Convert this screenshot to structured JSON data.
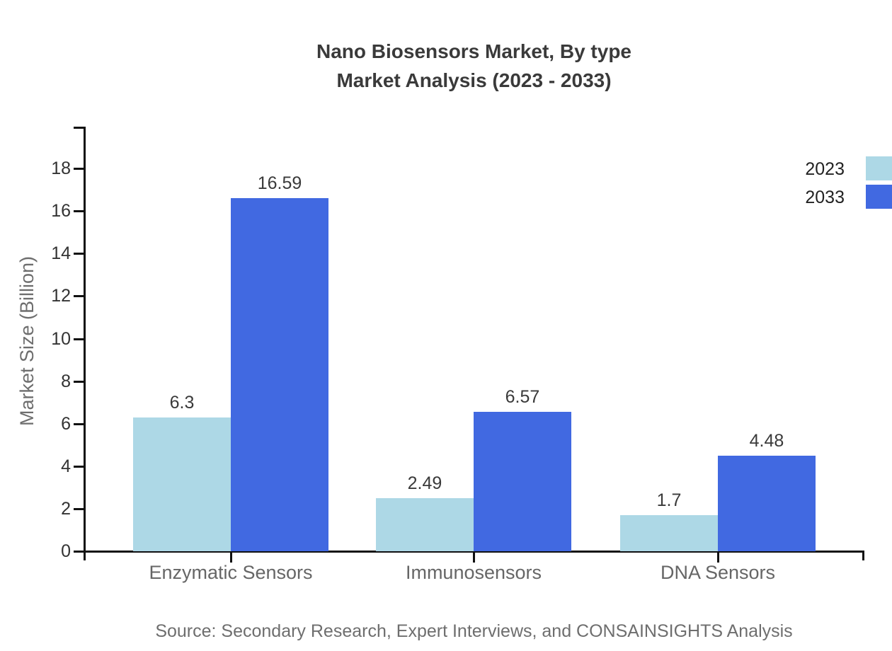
{
  "title": {
    "line1": "Nano Biosensors Market, By type",
    "line2": "Market Analysis (2023 - 2033)"
  },
  "source": "Source: Secondary Research, Expert Interviews, and CONSAINSIGHTS Analysis",
  "chart_data": {
    "type": "bar",
    "categories": [
      "Enzymatic Sensors",
      "Immunosensors",
      "DNA Sensors"
    ],
    "series": [
      {
        "name": "2023",
        "color": "#ADD8E6",
        "values": [
          6.3,
          2.49,
          1.7
        ]
      },
      {
        "name": "2033",
        "color": "#4169E1",
        "values": [
          16.59,
          6.57,
          4.48
        ]
      }
    ],
    "value_labels": [
      "6.3",
      "2.49",
      "1.7",
      "16.59",
      "6.57",
      "4.48"
    ],
    "ylabel": "Market Size (Billion)",
    "yticks": [
      0,
      2,
      4,
      6,
      8,
      10,
      12,
      14,
      16,
      18
    ],
    "ylim": [
      0,
      19.9
    ],
    "grid": false,
    "legend_position": "top-right-outside",
    "axis_color": "#111111"
  }
}
